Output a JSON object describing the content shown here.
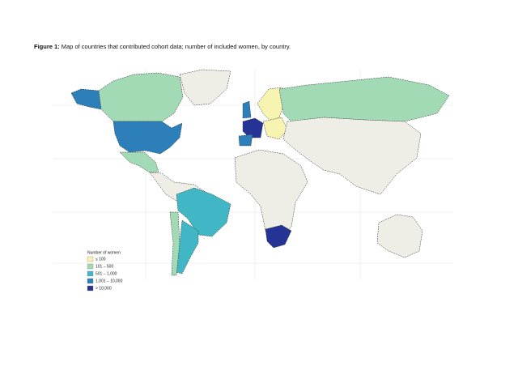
{
  "caption": {
    "label": "Figure 1:",
    "text": "Map of countries that contributed cohort data; number of included women, by country."
  },
  "legend": {
    "title": "Number of women",
    "items": [
      {
        "label": "≤ 100",
        "color": "#f7f3b0"
      },
      {
        "label": "101 – 500",
        "color": "#a1dab4"
      },
      {
        "label": "501 – 1,000",
        "color": "#41b6c4"
      },
      {
        "label": "1,001 – 10,000",
        "color": "#2c7fb8"
      },
      {
        "label": "> 10,000",
        "color": "#253494"
      }
    ]
  }
}
